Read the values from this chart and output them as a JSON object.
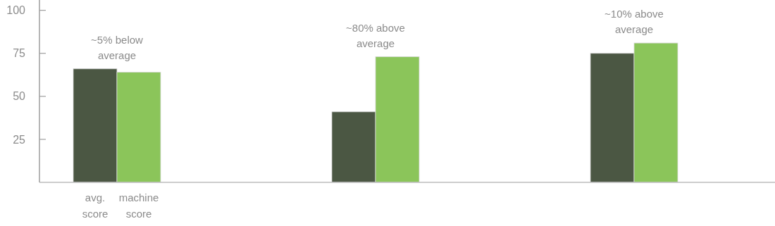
{
  "chart_data": {
    "type": "bar",
    "categories": [
      null,
      null,
      null
    ],
    "series": [
      {
        "name": "avg. score",
        "color": "#4b5743",
        "values": [
          66,
          41,
          75
        ]
      },
      {
        "name": "machine score",
        "color": "#8bc55a",
        "values": [
          64,
          73,
          81
        ]
      }
    ],
    "ylim": [
      0,
      106
    ],
    "yticks": [
      25,
      50,
      75,
      100
    ],
    "grid": false,
    "annotations": [
      "~5% below average",
      "~80% above average",
      "~10% above average"
    ]
  }
}
